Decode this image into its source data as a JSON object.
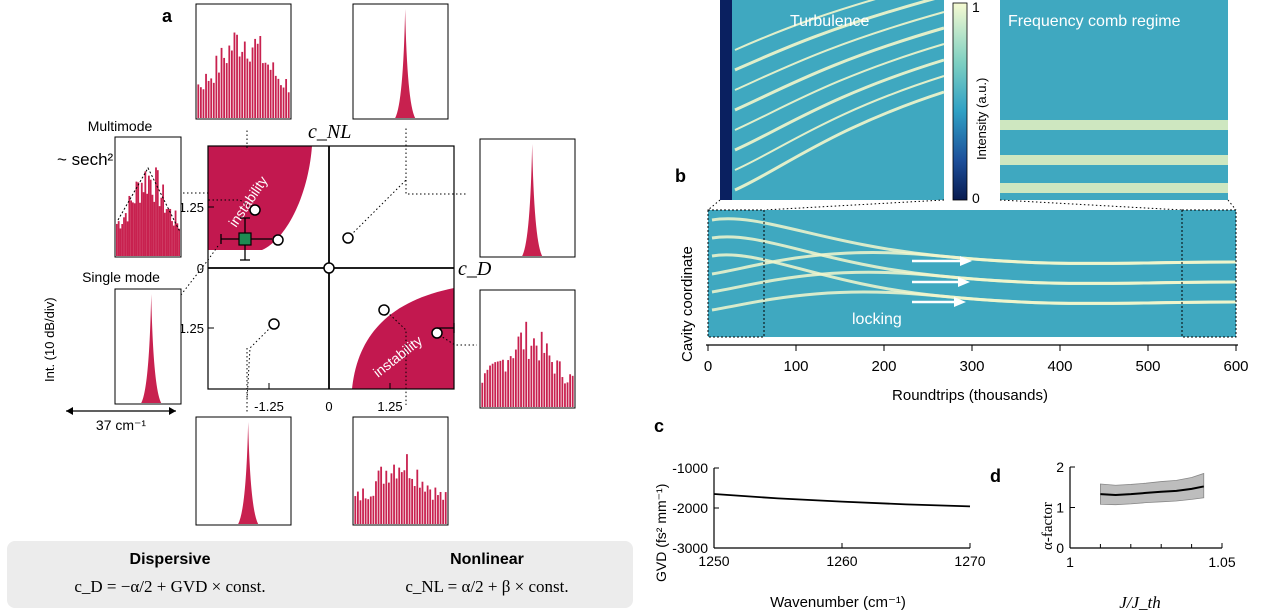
{
  "colors": {
    "instability": "#c2184f",
    "spectrum": "#c8214f",
    "map_background": "#3fa8c0",
    "map_dark": "#0a2060",
    "map_bright": "#f3f7cc",
    "data_point": "#1e8a52",
    "formula_box": "#ececec",
    "band": "#bdbdbd"
  },
  "panel_a": {
    "letter": "a",
    "axis_x": "c_D",
    "axis_y": "c_NL",
    "tick_x": [
      "-1.25",
      "0",
      "1.25"
    ],
    "tick_y": [
      "1.25",
      "0",
      "-1.25"
    ],
    "region_label": "instability",
    "multimode": "Multimode",
    "single_mode": "Single mode",
    "sech": "~ sech²",
    "int_label": "Int. (10 dB/div)",
    "width_label": "37 cm⁻¹",
    "dispersive_title": "Dispersive",
    "dispersive_eq": "c_D = −α/2 + GVD × const.",
    "nonlinear_title": "Nonlinear",
    "nonlinear_eq": "c_NL = α/2 + β × const."
  },
  "panel_b": {
    "letter": "b",
    "title_turbulence": "Turbulence",
    "title_comb": "Frequency comb regime",
    "colorbar_label": "Intensity (a.u.)",
    "colorbar_ticks": [
      "1",
      "0"
    ],
    "ylabel": "Cavity coordinate",
    "xlabel": "Roundtrips (thousands)",
    "locking": "locking",
    "xticks": [
      "0",
      "100",
      "200",
      "300",
      "400",
      "500",
      "600"
    ]
  },
  "chart_data": [
    {
      "type": "line",
      "panel": "c",
      "xlabel": "Wavenumber (cm⁻¹)",
      "ylabel": "GVD (fs² mm⁻¹)",
      "x": [
        1250,
        1255,
        1260,
        1265,
        1270
      ],
      "y": [
        -1650,
        -1760,
        -1840,
        -1910,
        -1960
      ],
      "xlim": [
        1250,
        1270
      ],
      "ylim": [
        -3000,
        -1000
      ],
      "xticks": [
        "1250",
        "1260",
        "1270"
      ],
      "yticks": [
        "-1000",
        "-2000",
        "-3000"
      ]
    },
    {
      "type": "line",
      "panel": "d",
      "xlabel": "J/J_th",
      "ylabel": "α-factor",
      "x": [
        1.01,
        1.015,
        1.02,
        1.025,
        1.03,
        1.035,
        1.04,
        1.044
      ],
      "y": [
        1.33,
        1.31,
        1.33,
        1.36,
        1.39,
        1.41,
        1.46,
        1.52
      ],
      "band_upper": [
        1.58,
        1.55,
        1.57,
        1.6,
        1.64,
        1.67,
        1.74,
        1.84
      ],
      "band_lower": [
        1.08,
        1.07,
        1.09,
        1.12,
        1.14,
        1.16,
        1.2,
        1.24
      ],
      "xlim": [
        1.0,
        1.05
      ],
      "ylim": [
        0,
        2
      ],
      "xticks": [
        "1",
        "1.05"
      ],
      "yticks": [
        "2",
        "1",
        "0"
      ]
    }
  ]
}
